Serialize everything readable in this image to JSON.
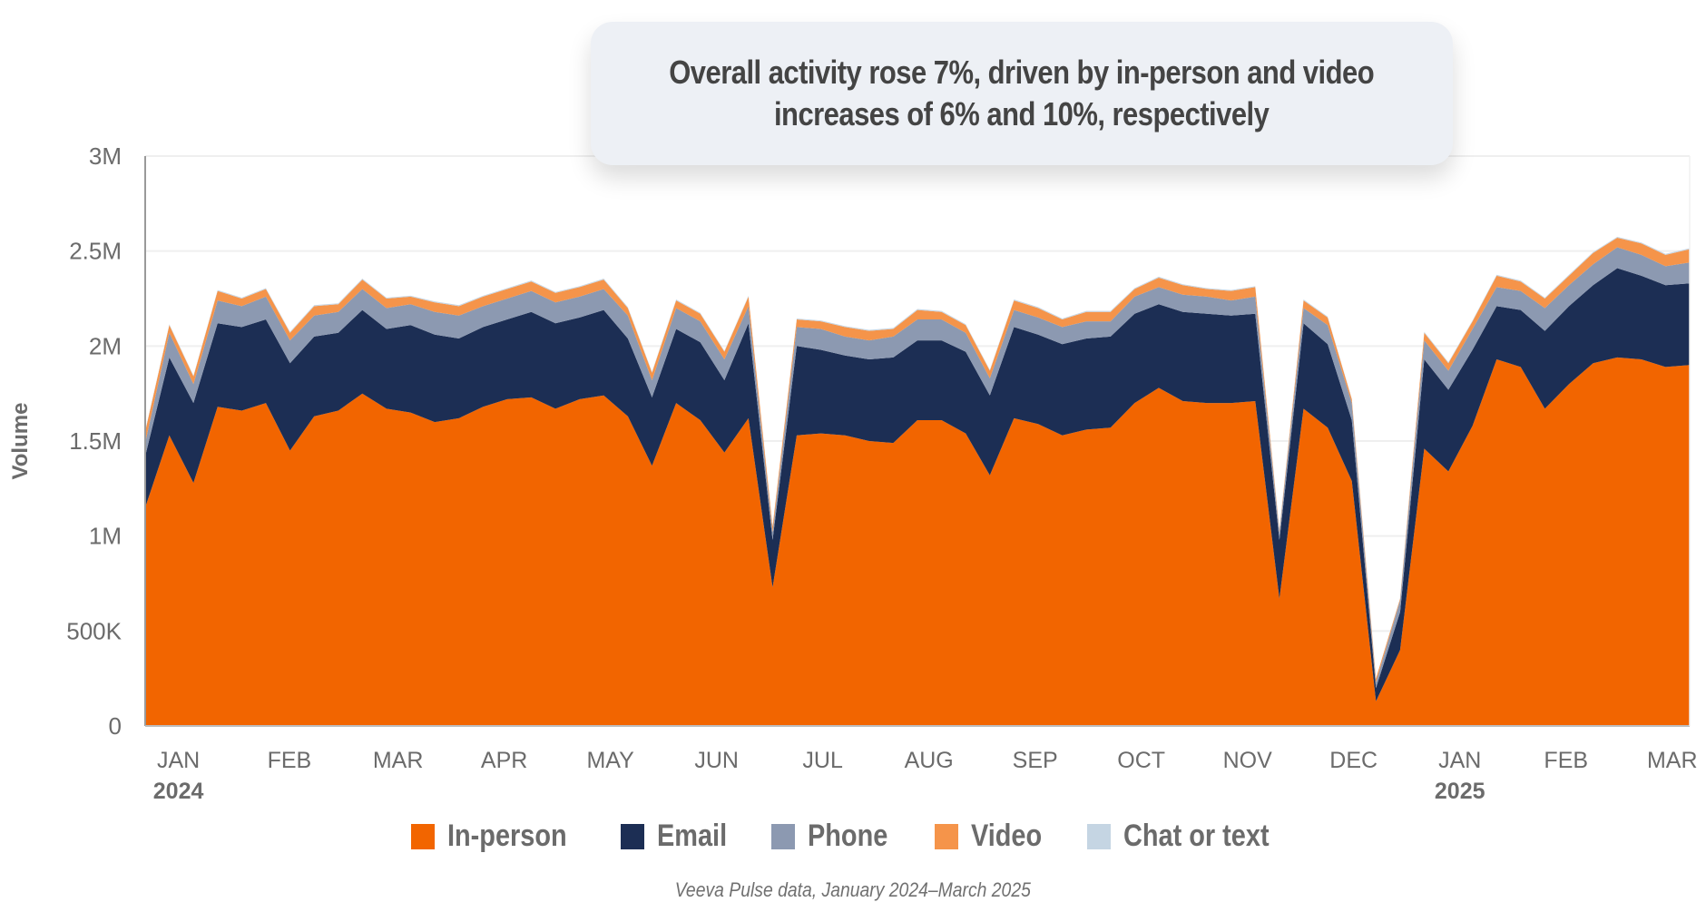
{
  "title_box": {
    "line1": "Overall activity rose 7%, driven by in-person and video",
    "line2": "increases of 6% and 10%, respectively"
  },
  "footnote": "Veeva Pulse data, January 2024–March 2025",
  "colors": {
    "in_person": "#f26500",
    "email": "#1c2e54",
    "phone": "#8c99b1",
    "video": "#f5944a",
    "chat": "#c5d5e3",
    "axis_text": "#6b6b6b",
    "grid": "#efefef"
  },
  "chart_data": {
    "type": "area",
    "stacked": true,
    "title": "Overall activity rose 7%, driven by in-person and video increases of 6% and 10%, respectively",
    "xlabel": "",
    "ylabel": "Volume",
    "ylim": [
      0,
      3000000
    ],
    "grid": true,
    "legend_position": "bottom",
    "y_ticks": [
      {
        "value": 0,
        "label": "0"
      },
      {
        "value": 500000,
        "label": "500K"
      },
      {
        "value": 1000000,
        "label": "1M"
      },
      {
        "value": 1500000,
        "label": "1.5M"
      },
      {
        "value": 2000000,
        "label": "2M"
      },
      {
        "value": 2500000,
        "label": "2.5M"
      },
      {
        "value": 3000000,
        "label": "3M"
      }
    ],
    "x_ticks": [
      {
        "week": 2,
        "label": "JAN",
        "year": "2024"
      },
      {
        "week": 6.6,
        "label": "FEB",
        "year": ""
      },
      {
        "week": 11.1,
        "label": "MAR",
        "year": ""
      },
      {
        "week": 15.5,
        "label": "APR",
        "year": ""
      },
      {
        "week": 19.9,
        "label": "MAY",
        "year": ""
      },
      {
        "week": 24.3,
        "label": "JUN",
        "year": ""
      },
      {
        "week": 28.7,
        "label": "JUL",
        "year": ""
      },
      {
        "week": 33.1,
        "label": "AUG",
        "year": ""
      },
      {
        "week": 37.5,
        "label": "SEP",
        "year": ""
      },
      {
        "week": 41.9,
        "label": "OCT",
        "year": ""
      },
      {
        "week": 46.3,
        "label": "NOV",
        "year": ""
      },
      {
        "week": 50.7,
        "label": "DEC",
        "year": ""
      },
      {
        "week": 55.1,
        "label": "JAN",
        "year": "2025"
      },
      {
        "week": 59.5,
        "label": "FEB",
        "year": ""
      },
      {
        "week": 63.9,
        "label": "MAR",
        "year": ""
      }
    ],
    "x_count": 65,
    "series": [
      {
        "name": "In-person",
        "key": "in_person",
        "values": [
          1.15,
          1.53,
          1.28,
          1.68,
          1.66,
          1.7,
          1.45,
          1.63,
          1.66,
          1.75,
          1.67,
          1.65,
          1.6,
          1.62,
          1.68,
          1.72,
          1.73,
          1.67,
          1.72,
          1.74,
          1.63,
          1.37,
          1.7,
          1.61,
          1.44,
          1.62,
          0.73,
          1.53,
          1.54,
          1.53,
          1.5,
          1.49,
          1.61,
          1.61,
          1.54,
          1.32,
          1.62,
          1.59,
          1.53,
          1.56,
          1.57,
          1.7,
          1.78,
          1.71,
          1.7,
          1.7,
          1.71,
          0.67,
          1.67,
          1.57,
          1.29,
          0.13,
          0.4,
          1.46,
          1.34,
          1.58,
          1.93,
          1.89,
          1.67,
          1.8,
          1.91,
          1.94,
          1.93,
          1.89,
          1.9
        ]
      },
      {
        "name": "Email",
        "key": "email",
        "values": [
          0.27,
          0.41,
          0.42,
          0.44,
          0.44,
          0.44,
          0.46,
          0.42,
          0.41,
          0.44,
          0.42,
          0.46,
          0.46,
          0.42,
          0.42,
          0.42,
          0.45,
          0.45,
          0.43,
          0.45,
          0.41,
          0.36,
          0.39,
          0.41,
          0.38,
          0.5,
          0.25,
          0.47,
          0.44,
          0.42,
          0.43,
          0.45,
          0.42,
          0.42,
          0.43,
          0.42,
          0.48,
          0.47,
          0.48,
          0.48,
          0.48,
          0.47,
          0.44,
          0.47,
          0.47,
          0.46,
          0.46,
          0.31,
          0.45,
          0.44,
          0.32,
          0.07,
          0.2,
          0.47,
          0.43,
          0.4,
          0.28,
          0.3,
          0.41,
          0.41,
          0.41,
          0.47,
          0.44,
          0.43,
          0.43
        ]
      },
      {
        "name": "Phone",
        "key": "phone",
        "values": [
          0.07,
          0.13,
          0.1,
          0.12,
          0.11,
          0.12,
          0.12,
          0.11,
          0.11,
          0.11,
          0.11,
          0.11,
          0.12,
          0.12,
          0.11,
          0.11,
          0.11,
          0.11,
          0.11,
          0.11,
          0.12,
          0.09,
          0.11,
          0.11,
          0.11,
          0.09,
          0.04,
          0.1,
          0.11,
          0.1,
          0.1,
          0.11,
          0.11,
          0.11,
          0.1,
          0.09,
          0.09,
          0.09,
          0.09,
          0.09,
          0.08,
          0.09,
          0.09,
          0.09,
          0.09,
          0.08,
          0.09,
          0.04,
          0.08,
          0.1,
          0.09,
          0.03,
          0.06,
          0.1,
          0.1,
          0.11,
          0.1,
          0.1,
          0.12,
          0.11,
          0.11,
          0.11,
          0.11,
          0.1,
          0.11
        ]
      },
      {
        "name": "Video",
        "key": "video",
        "values": [
          0.06,
          0.04,
          0.04,
          0.05,
          0.04,
          0.04,
          0.04,
          0.05,
          0.04,
          0.05,
          0.05,
          0.04,
          0.05,
          0.05,
          0.05,
          0.05,
          0.05,
          0.05,
          0.05,
          0.05,
          0.04,
          0.04,
          0.04,
          0.04,
          0.04,
          0.05,
          0.03,
          0.04,
          0.04,
          0.05,
          0.05,
          0.04,
          0.05,
          0.04,
          0.04,
          0.04,
          0.05,
          0.05,
          0.04,
          0.05,
          0.05,
          0.04,
          0.05,
          0.05,
          0.04,
          0.05,
          0.05,
          0.01,
          0.04,
          0.04,
          0.02,
          0.02,
          0.01,
          0.04,
          0.04,
          0.04,
          0.06,
          0.05,
          0.05,
          0.05,
          0.06,
          0.05,
          0.06,
          0.06,
          0.07
        ]
      },
      {
        "name": "Chat or text",
        "key": "chat",
        "values": [
          0.005,
          0.005,
          0.005,
          0.005,
          0.005,
          0.005,
          0.005,
          0.005,
          0.005,
          0.005,
          0.005,
          0.005,
          0.005,
          0.005,
          0.005,
          0.005,
          0.005,
          0.005,
          0.005,
          0.005,
          0.005,
          0.005,
          0.005,
          0.005,
          0.005,
          0.005,
          0.003,
          0.005,
          0.005,
          0.005,
          0.005,
          0.005,
          0.005,
          0.005,
          0.005,
          0.005,
          0.005,
          0.005,
          0.005,
          0.005,
          0.005,
          0.005,
          0.005,
          0.005,
          0.005,
          0.005,
          0.005,
          0.003,
          0.005,
          0.005,
          0.004,
          0.002,
          0.003,
          0.005,
          0.005,
          0.005,
          0.005,
          0.005,
          0.005,
          0.005,
          0.005,
          0.005,
          0.005,
          0.005,
          0.005
        ]
      }
    ],
    "values_unit": "millions"
  }
}
